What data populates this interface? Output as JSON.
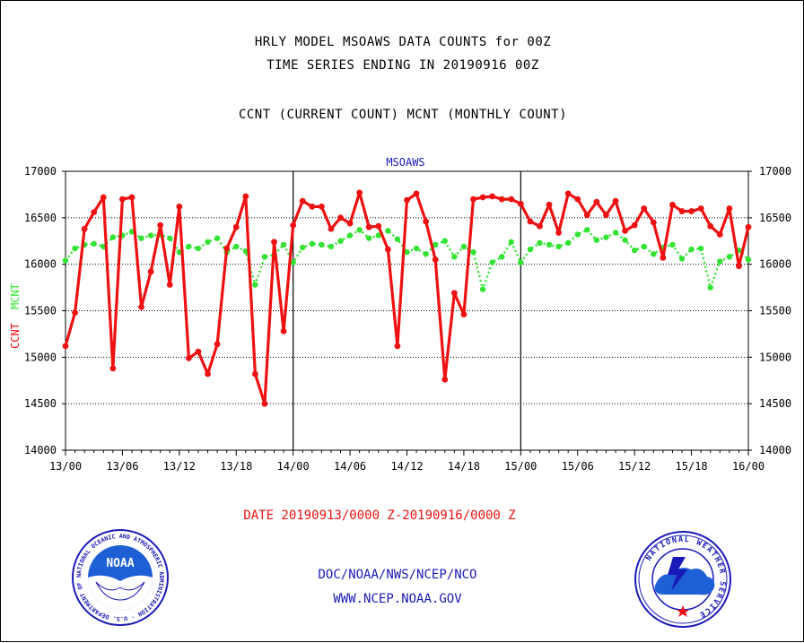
{
  "header": {
    "line1": "HRLY MODEL MSOAWS DATA COUNTS for 00Z",
    "line2": "TIME SERIES ENDING IN 20190916 00Z",
    "line3": "CCNT (CURRENT COUNT) MCNT (MONTHLY COUNT)"
  },
  "chart_data": {
    "type": "line",
    "title": "MSOAWS",
    "xlabel": "",
    "ylabel_left": [
      "CCNT",
      "MCNT"
    ],
    "ylim": [
      14000,
      17000
    ],
    "yticks": [
      14000,
      14500,
      15000,
      15500,
      16000,
      16500,
      17000
    ],
    "x_tick_labels": [
      "13/00",
      "13/06",
      "13/12",
      "13/18",
      "14/00",
      "14/06",
      "14/12",
      "14/18",
      "15/00",
      "15/06",
      "15/12",
      "15/18",
      "16/00"
    ],
    "x_range_hours": [
      0,
      72
    ],
    "day_dividers_hours": [
      24,
      48
    ],
    "grid": true,
    "series": [
      {
        "name": "CCNT",
        "color": "#ee1111",
        "values": [
          15120,
          15480,
          16380,
          16560,
          16720,
          14880,
          16700,
          16720,
          15540,
          15920,
          16420,
          15780,
          16620,
          14990,
          15060,
          14820,
          15140,
          16170,
          16400,
          16730,
          14820,
          14500,
          16240,
          15280,
          16420,
          16680,
          16620,
          16620,
          16380,
          16500,
          16440,
          16770,
          16400,
          16410,
          16160,
          15120,
          16690,
          16760,
          16460,
          16050,
          14760,
          15690,
          15460,
          16700,
          16720,
          16730,
          16700,
          16700,
          16650,
          16460,
          16410,
          16640,
          16340,
          16760,
          16700,
          16530,
          16670,
          16530,
          16680,
          16360,
          16420,
          16600,
          16450,
          16070,
          16640,
          16570,
          16570,
          16600,
          16410,
          16320,
          16600,
          15980,
          16400
        ]
      },
      {
        "name": "MCNT",
        "color": "#33e333",
        "values": [
          16040,
          16170,
          16210,
          16220,
          16190,
          16290,
          16310,
          16350,
          16280,
          16310,
          16320,
          16280,
          16130,
          16190,
          16170,
          16240,
          16280,
          16130,
          16190,
          16140,
          15780,
          16080,
          16100,
          16210,
          16020,
          16180,
          16220,
          16210,
          16190,
          16250,
          16310,
          16370,
          16280,
          16310,
          16360,
          16270,
          16130,
          16170,
          16110,
          16210,
          16250,
          16080,
          16190,
          16130,
          15730,
          16020,
          16080,
          16240,
          16020,
          16160,
          16230,
          16210,
          16190,
          16230,
          16320,
          16370,
          16260,
          16290,
          16340,
          16260,
          16150,
          16190,
          16110,
          16180,
          16210,
          16060,
          16160,
          16170,
          15750,
          16030,
          16080,
          16150,
          16050
        ]
      }
    ]
  },
  "footer": {
    "date_range": "DATE 20190913/0000 Z-20190916/0000 Z",
    "link1": "DOC/NOAA/NWS/NCEP/NCO",
    "link2": "WWW.NCEP.NOAA.GOV"
  },
  "logos": {
    "noaa_ring_text": "NATIONAL OCEANIC AND ATMOSPHERIC ADMINISTRATION · U.S. DEPARTMENT OF COMMERCE",
    "noaa_center_text": "NOAA",
    "nws_ring_text": "NATIONAL WEATHER SERVICE"
  },
  "colors": {
    "ccnt": "#ee1111",
    "mcnt": "#33e333",
    "link": "#1a1ab8",
    "title_blue": "#1a1ab8"
  }
}
